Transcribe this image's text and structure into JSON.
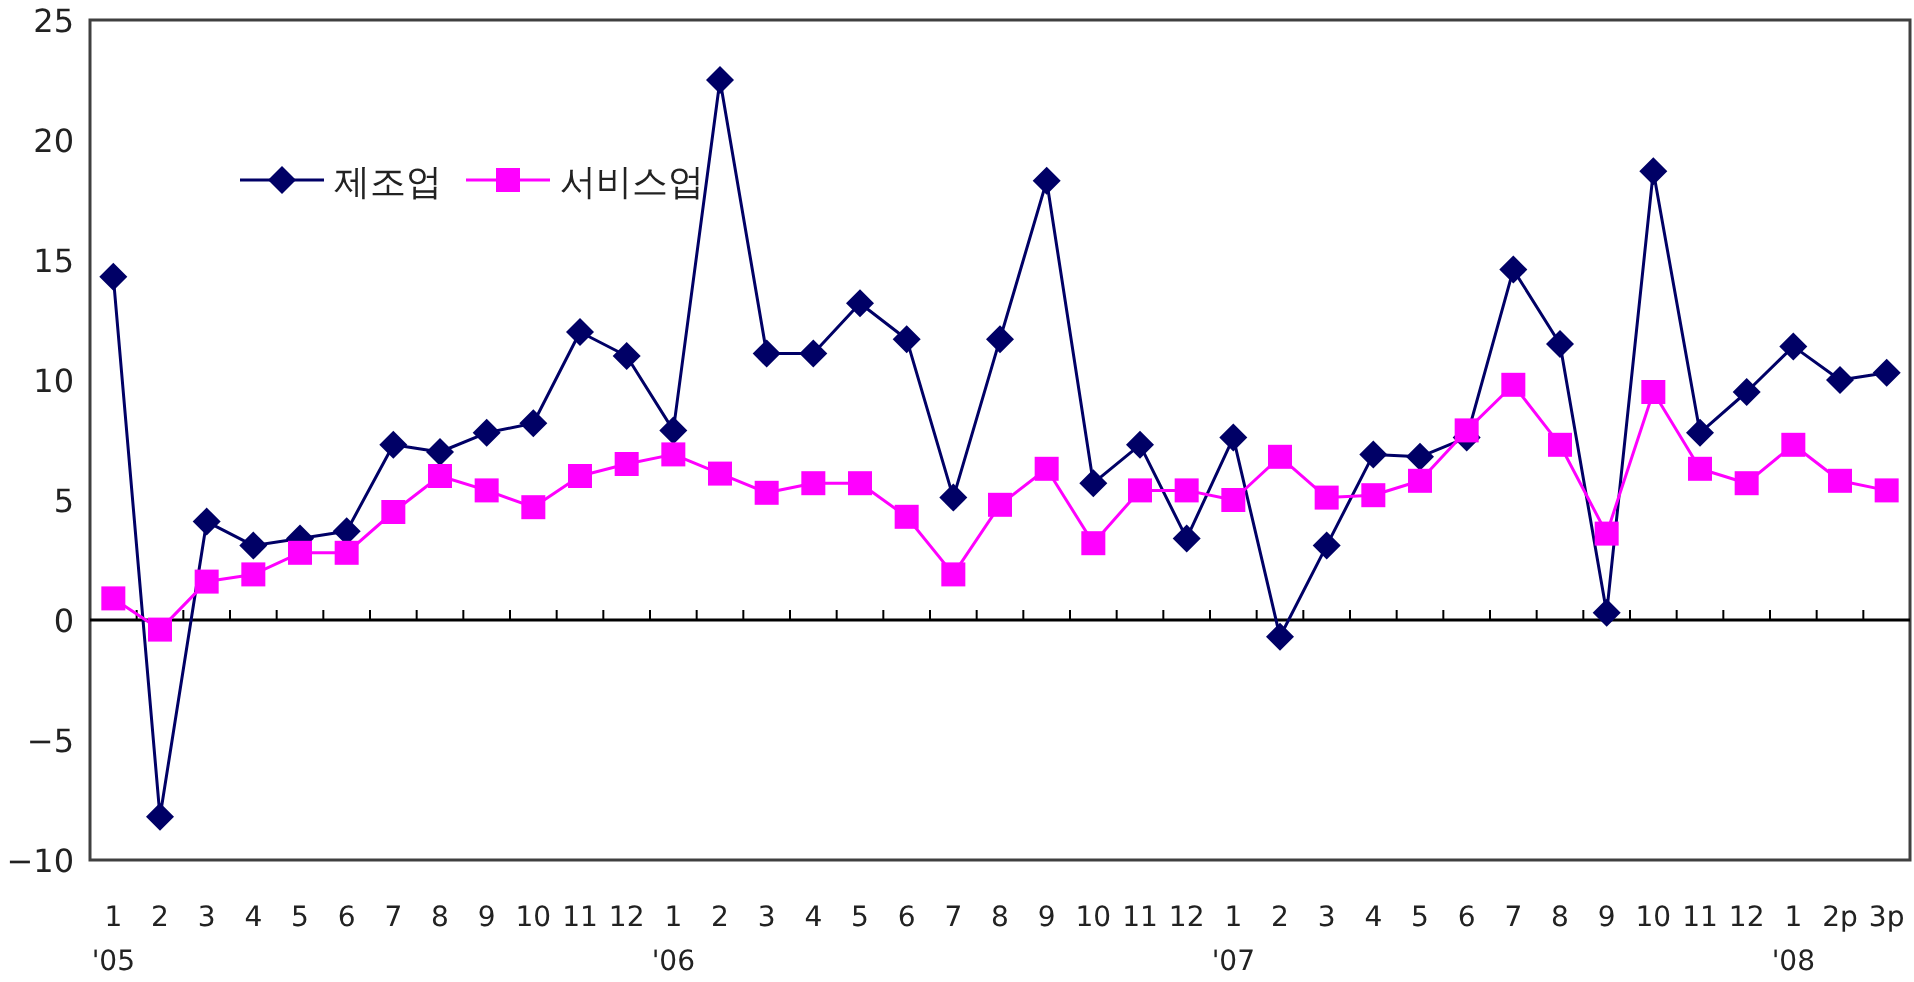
{
  "chart_data": {
    "type": "line",
    "categories": [
      "1\n'05",
      "2",
      "3",
      "4",
      "5",
      "6",
      "7",
      "8",
      "9",
      "10",
      "11",
      "12",
      "1\n'06",
      "2",
      "3",
      "4",
      "5",
      "6",
      "7",
      "8",
      "9",
      "10",
      "11",
      "12",
      "1\n'07",
      "2",
      "3",
      "4",
      "5",
      "6",
      "7",
      "8",
      "9",
      "10",
      "11",
      "12",
      "1\n'08",
      "2p",
      "3p"
    ],
    "series": [
      {
        "name": "제조업",
        "color": "#000066",
        "marker": "diamond",
        "values": [
          14.3,
          -8.2,
          4.1,
          3.1,
          3.4,
          3.7,
          7.3,
          7.0,
          7.8,
          8.2,
          12.0,
          11.0,
          7.9,
          22.5,
          11.1,
          11.1,
          13.2,
          11.7,
          5.1,
          11.7,
          18.3,
          5.7,
          7.3,
          3.4,
          7.6,
          -0.7,
          3.1,
          6.9,
          6.8,
          7.6,
          14.6,
          11.5,
          0.3,
          18.7,
          7.8,
          9.5,
          11.4,
          10.0,
          10.3
        ]
      },
      {
        "name": "서비스업",
        "color": "#ff00ff",
        "marker": "square",
        "values": [
          0.9,
          -0.4,
          1.6,
          1.9,
          2.8,
          2.8,
          4.5,
          6.0,
          5.4,
          4.7,
          6.0,
          6.5,
          6.9,
          6.1,
          5.3,
          5.7,
          5.7,
          4.3,
          1.9,
          4.8,
          6.3,
          3.2,
          5.4,
          5.4,
          5.0,
          6.8,
          5.1,
          5.2,
          5.8,
          7.9,
          9.8,
          7.3,
          3.6,
          9.5,
          6.3,
          5.7,
          7.3,
          5.8,
          5.4
        ]
      }
    ],
    "ylim": [
      -10,
      25
    ],
    "yticks": [
      -10,
      -5,
      0,
      5,
      10,
      15,
      20,
      25
    ],
    "ref_lines": [
      {
        "axis": "y",
        "value": 0
      }
    ],
    "grid": false,
    "legend": "top left"
  }
}
